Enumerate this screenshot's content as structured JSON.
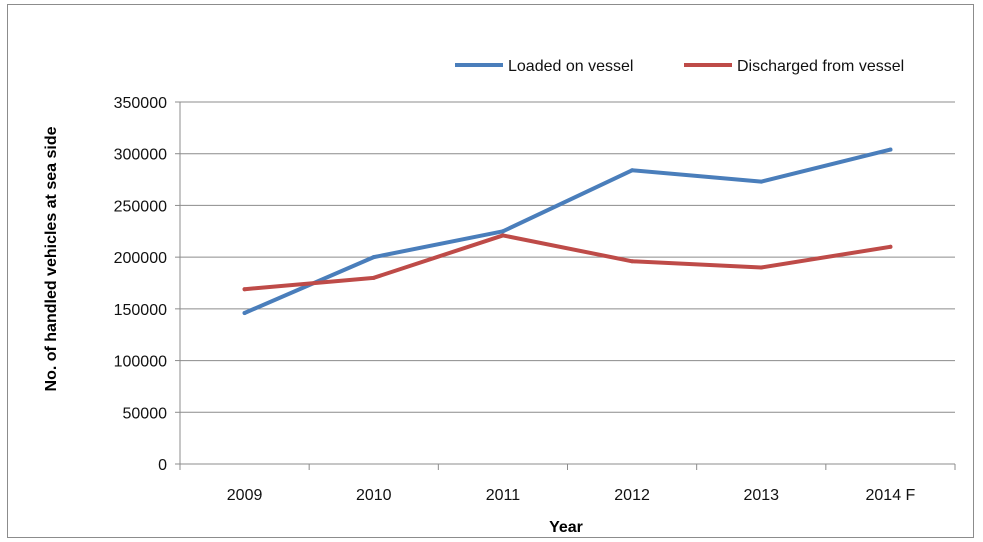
{
  "chart_data": {
    "type": "line",
    "title": "",
    "xlabel": "Year",
    "ylabel": "No. of handled vehicles at sea side",
    "categories": [
      "2009",
      "2010",
      "2011",
      "2012",
      "2013",
      "2014 F"
    ],
    "ylim": [
      0,
      350000
    ],
    "yticks": [
      0,
      50000,
      100000,
      150000,
      200000,
      250000,
      300000,
      350000
    ],
    "ytick_labels": [
      "0",
      "50000",
      "100000",
      "150000",
      "200000",
      "250000",
      "300000",
      "350000"
    ],
    "grid": true,
    "legend_position": "top-right",
    "series": [
      {
        "name": "Loaded on vessel",
        "color": "#4a7ebb",
        "values": [
          146000,
          200000,
          225000,
          284000,
          273000,
          304000
        ]
      },
      {
        "name": "Discharged from vessel",
        "color": "#be4b48",
        "values": [
          169000,
          180000,
          221000,
          196000,
          190000,
          210000
        ]
      }
    ]
  }
}
